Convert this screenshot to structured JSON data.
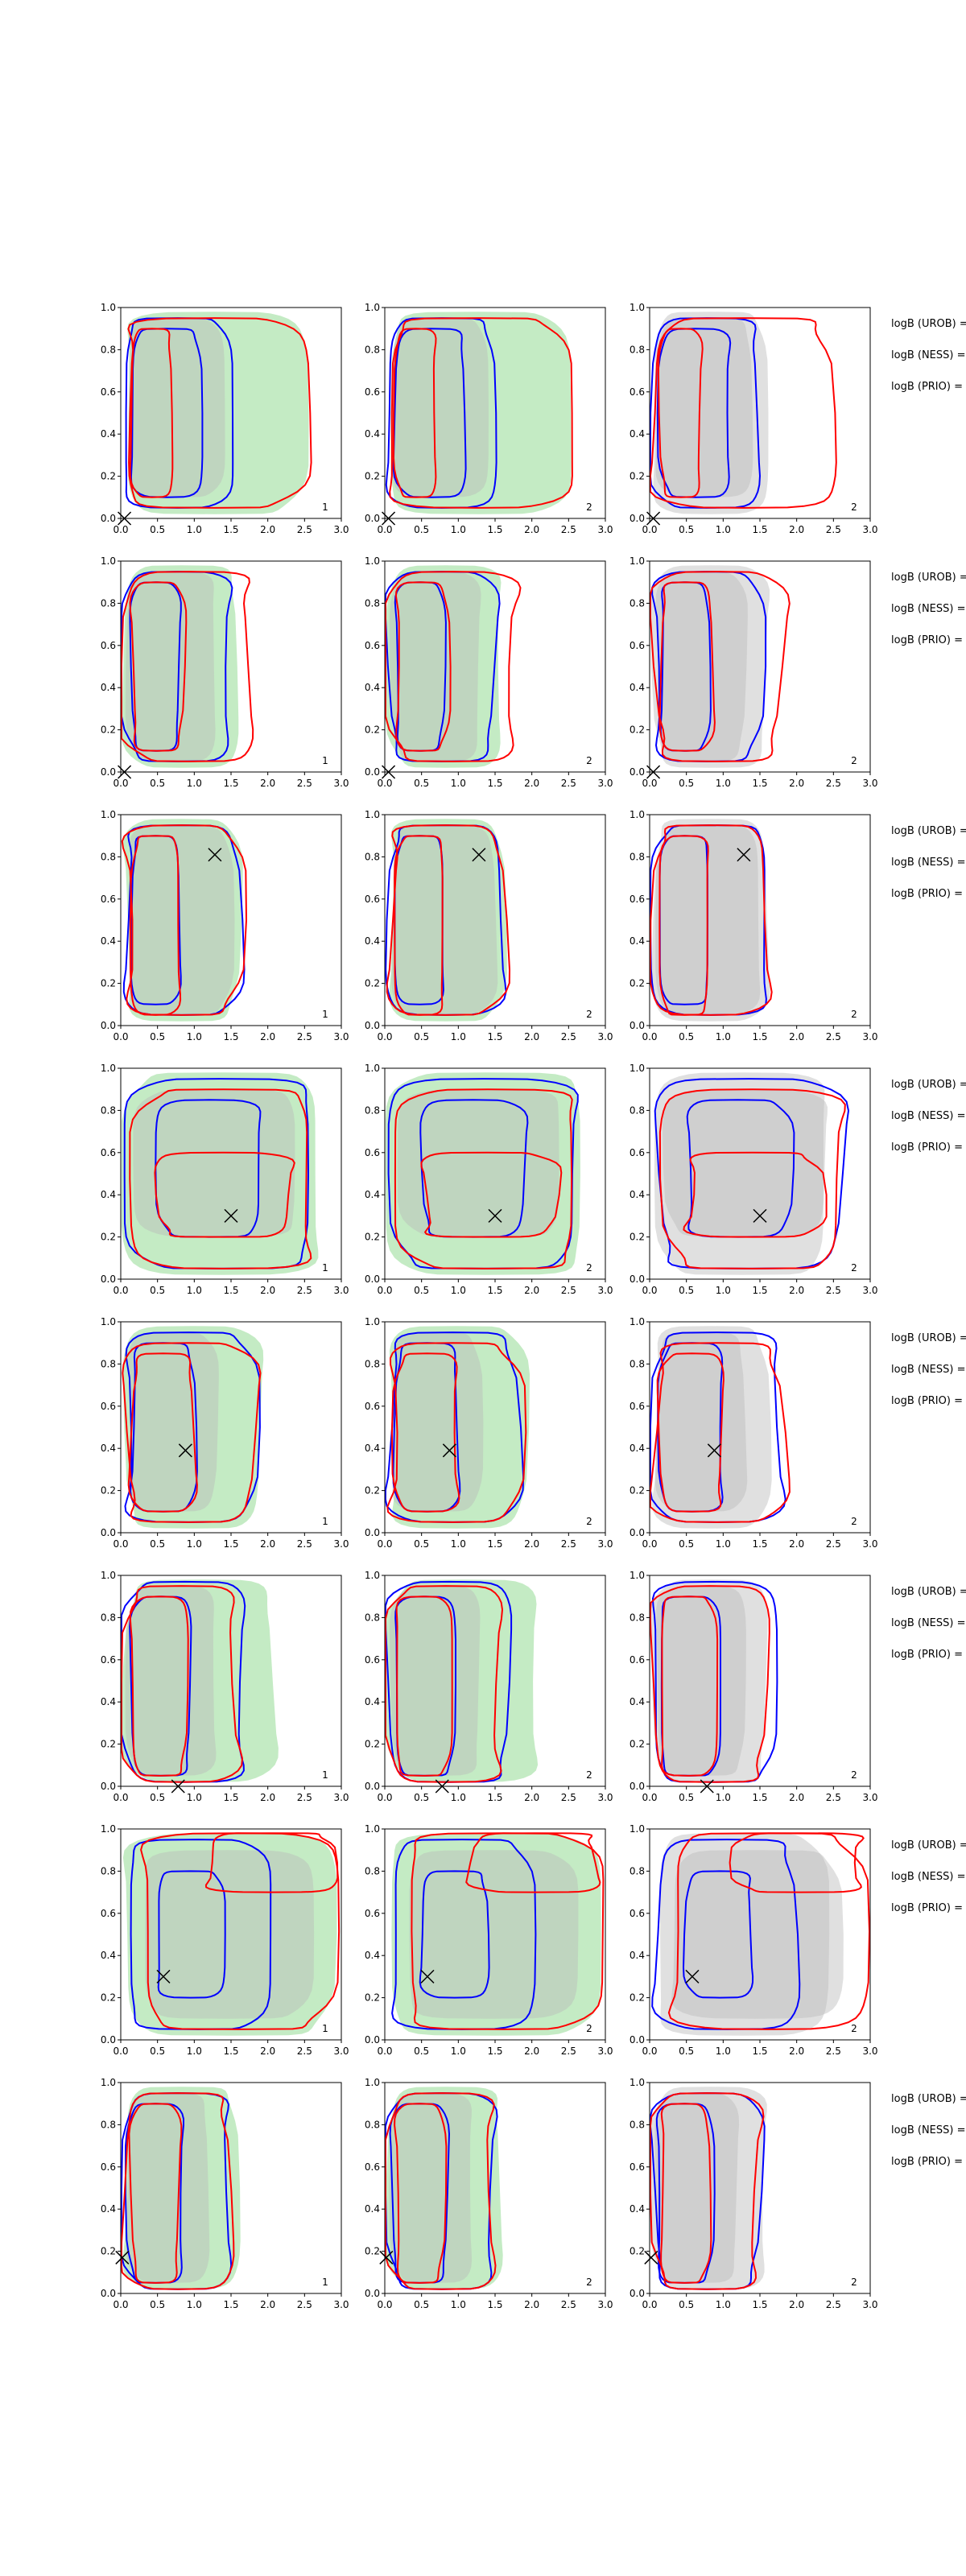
{
  "figure_description": "8 x 3 grid of contour panels",
  "chart_data": {
    "type": "contour",
    "rows": 8,
    "cols": 3,
    "xlim": [
      0,
      3
    ],
    "ylim": [
      0,
      1
    ],
    "xticks": [
      "0.0",
      "0.5",
      "1.0",
      "1.5",
      "2.0",
      "2.5",
      "3.0"
    ],
    "yticks": [
      "0.0",
      "0.2",
      "0.4",
      "0.6",
      "0.8",
      "1.0"
    ],
    "panel_numbers": [
      "1",
      "2",
      "2"
    ],
    "logb_labels": [
      "logB (UROB) =",
      "logB (NESS) =",
      "logB (PRIO) ="
    ],
    "colors": {
      "shade_green": "#a4e0a4",
      "shade_gray": "#cfcfcf",
      "line_blue": "#0000ff",
      "line_red": "#ff0000",
      "marker": "#000000"
    },
    "markers": [
      {
        "row": 0,
        "x": 0.05,
        "y": 0.0,
        "label": "row-1"
      },
      {
        "row": 1,
        "x": 0.05,
        "y": 0.0,
        "label": "row-2"
      },
      {
        "row": 2,
        "x": 1.28,
        "y": 0.81,
        "label": "row-3"
      },
      {
        "row": 3,
        "x": 1.5,
        "y": 0.3,
        "label": "row-4"
      },
      {
        "row": 4,
        "x": 0.88,
        "y": 0.39,
        "label": "row-5"
      },
      {
        "row": 5,
        "x": 0.78,
        "y": 0.0,
        "label": "row-6"
      },
      {
        "row": 6,
        "x": 0.58,
        "y": 0.3,
        "label": "row-7"
      },
      {
        "row": 7,
        "x": 0.02,
        "y": 0.17,
        "label": "row-8"
      }
    ],
    "shape_presets": {
      "rect_narrow": [
        [
          0.1,
          0.05
        ],
        [
          0.7,
          0.05
        ],
        [
          0.75,
          0.5
        ],
        [
          0.72,
          0.95
        ],
        [
          0.1,
          0.95
        ]
      ],
      "rect_mid": [
        [
          0.05,
          0.03
        ],
        [
          1.1,
          0.03
        ],
        [
          1.2,
          0.5
        ],
        [
          1.15,
          0.97
        ],
        [
          0.05,
          0.97
        ]
      ],
      "rect_wide": [
        [
          0.02,
          0.01
        ],
        [
          1.6,
          0.01
        ],
        [
          1.7,
          0.5
        ],
        [
          1.6,
          0.99
        ],
        [
          0.02,
          0.99
        ]
      ]
    }
  }
}
